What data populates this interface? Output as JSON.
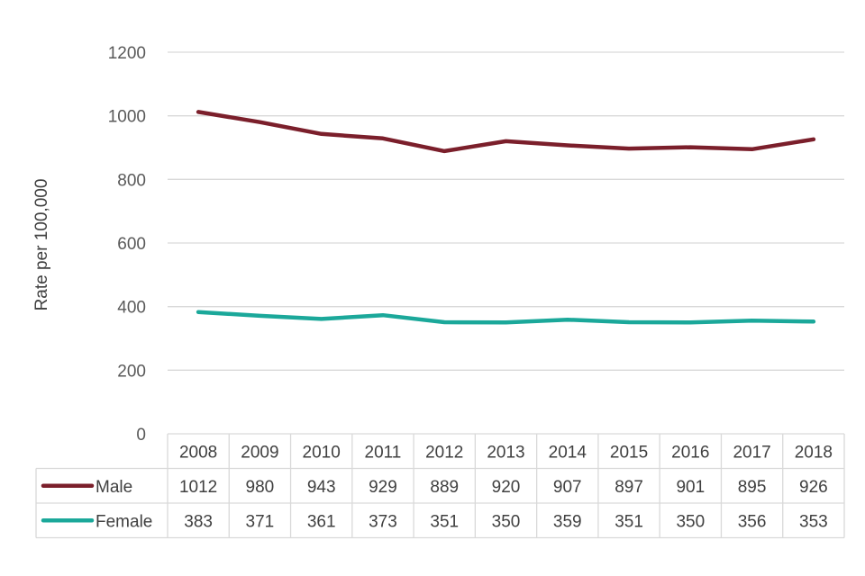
{
  "chart_data": {
    "type": "line",
    "title": "",
    "xlabel": "",
    "ylabel": "Rate per 100,000",
    "ylim": [
      0,
      1200
    ],
    "yticks": [
      0,
      200,
      400,
      600,
      800,
      1000,
      1200
    ],
    "categories": [
      "2008",
      "2009",
      "2010",
      "2011",
      "2012",
      "2013",
      "2014",
      "2015",
      "2016",
      "2017",
      "2018"
    ],
    "grid": true,
    "legend": "data-table-left",
    "series": [
      {
        "name": "Male",
        "color": "#7B1F2B",
        "values": [
          1012,
          980,
          943,
          929,
          889,
          920,
          907,
          897,
          901,
          895,
          926
        ],
        "labels": [
          "1012",
          "980",
          "943",
          "929",
          "889",
          "920",
          "907",
          "897",
          "901",
          "895",
          "926"
        ]
      },
      {
        "name": "Female",
        "color": "#1BA89A",
        "values": [
          383,
          371,
          361,
          373,
          351,
          350,
          359,
          351,
          350,
          356,
          353
        ],
        "labels": [
          "383",
          "371",
          "361",
          "373",
          "351",
          "350",
          "359",
          "351",
          "350",
          "356",
          "353"
        ]
      }
    ]
  }
}
